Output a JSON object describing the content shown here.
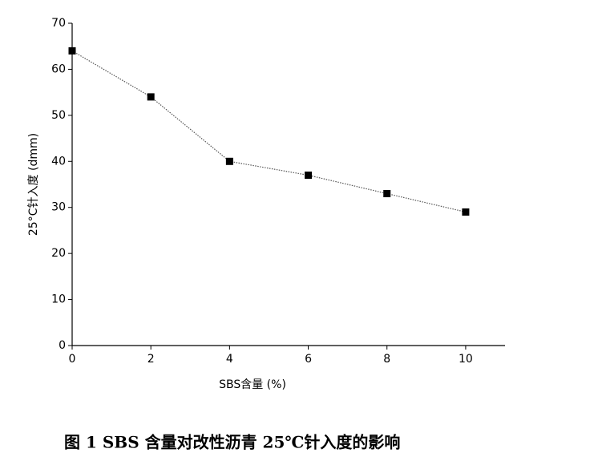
{
  "chart_data": {
    "type": "line",
    "x_label": "SBS含量 (%)",
    "y_label": "25°C针入度 (dmm)",
    "caption": "图 1   SBS 含量对改性沥青 25℃针入度的影响",
    "x": [
      0,
      2,
      4,
      6,
      8,
      10
    ],
    "series": [
      {
        "color": "#000000",
        "values": [
          64,
          54,
          40,
          37,
          33,
          29
        ]
      }
    ],
    "xlim": [
      0,
      11
    ],
    "xticks": [
      0,
      2,
      4,
      6,
      8,
      10
    ],
    "ylim": [
      0,
      70
    ],
    "yticks": [
      0,
      10,
      20,
      30,
      40,
      50,
      60,
      70
    ],
    "grid": false
  }
}
